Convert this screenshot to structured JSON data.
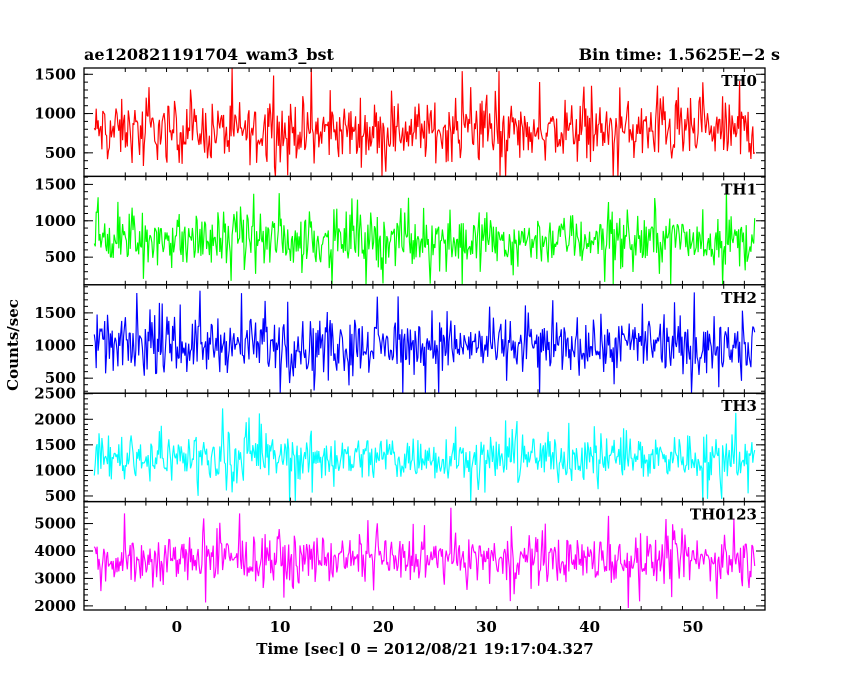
{
  "header": {
    "title": "ae120821191704_wam3_bst",
    "bin_time": "Bin time: 1.5625E−2 s"
  },
  "chart_data": {
    "type": "line",
    "title": "ae120821191704_wam3_bst",
    "xlabel": "Time [sec] 0 = 2012/08/21 19:17:04.327",
    "ylabel": "Counts/sec",
    "xlim": [
      -9,
      57
    ],
    "x_range_data": [
      -8,
      56
    ],
    "x_ticks": [
      0,
      10,
      20,
      30,
      40,
      50
    ],
    "x_tick_labels": [
      "0",
      "10",
      "20",
      "30",
      "40",
      "50"
    ],
    "panels": [
      {
        "name": "TH0",
        "color": "#ff0000",
        "ylim": [
          200,
          1580
        ],
        "ticks": [
          500,
          1000,
          1500
        ],
        "tick_labels": [
          "500",
          "1000",
          "1500"
        ],
        "center": 780,
        "spread": 520
      },
      {
        "name": "TH1",
        "color": "#00ff00",
        "ylim": [
          120,
          1610
        ],
        "ticks": [
          500,
          1000,
          1500
        ],
        "tick_labels": [
          "500",
          "1000",
          "1500"
        ],
        "center": 740,
        "spread": 500
      },
      {
        "name": "TH2",
        "color": "#0000ff",
        "ylim": [
          270,
          1930
        ],
        "ticks": [
          500,
          1000,
          1500
        ],
        "tick_labels": [
          "500",
          "1000",
          "1500"
        ],
        "center": 1000,
        "spread": 560
      },
      {
        "name": "TH3",
        "color": "#00ffff",
        "ylim": [
          390,
          2510
        ],
        "ticks": [
          500,
          1000,
          1500,
          2000,
          2500
        ],
        "tick_labels": [
          "500",
          "1000",
          "1500",
          "2000",
          "2500"
        ],
        "center": 1260,
        "spread": 620
      },
      {
        "name": "TH0123",
        "color": "#ff00ff",
        "ylim": [
          1850,
          5800
        ],
        "ticks": [
          2000,
          3000,
          4000,
          5000
        ],
        "tick_labels": [
          "2000",
          "3000",
          "4000",
          "5000"
        ],
        "center": 3700,
        "spread": 1150
      }
    ]
  }
}
